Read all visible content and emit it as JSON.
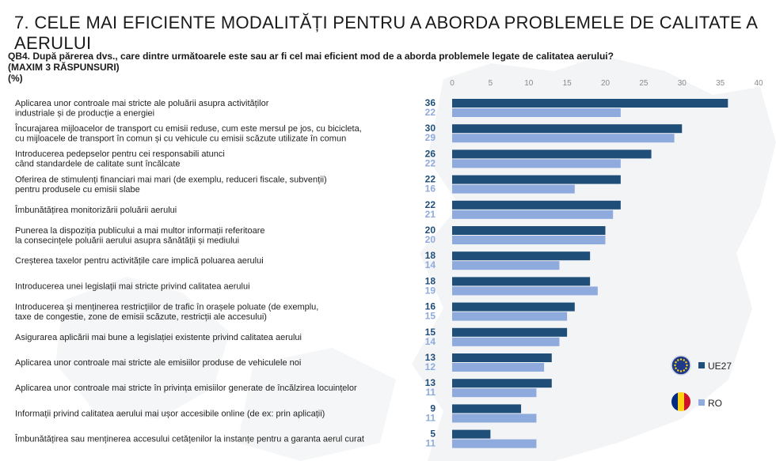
{
  "header": {
    "title": "7. CELE MAI EFICIENTE MODALITĂȚI PENTRU A ABORDA PROBLEMELE DE CALITATE A AERULUI"
  },
  "question": {
    "line1": "QB4. După părerea dvs., care dintre următoarele este sau ar fi cel mai eficient mod de a aborda problemele legate de calitatea aerului?",
    "line2": "(MAXIM 3 RĂSPUNSURI)",
    "line3": "(%)"
  },
  "colors": {
    "ue27": "#1f4e79",
    "ro": "#8faadc"
  },
  "legend": {
    "position": "right",
    "ue27_label": "UE27",
    "ro_label": "RO",
    "ue27_icon": "eu-flag-icon",
    "ro_icon": "romania-flag-icon"
  },
  "chart_data": {
    "type": "bar",
    "orientation": "horizontal",
    "xlim": [
      0,
      40
    ],
    "ticks": [
      0,
      5,
      10,
      15,
      20,
      25,
      30,
      35,
      40
    ],
    "grid": false,
    "categories": [
      [
        "Aplicarea unor controale mai stricte ale poluării asupra activităților",
        "industriale și de producție a energiei"
      ],
      [
        "Încurajarea mijloacelor de transport cu emisii reduse, cum este mersul pe jos, cu bicicleta,",
        "cu mijloacele de transport în comun și cu vehicule cu emisii scăzute utilizate în comun"
      ],
      [
        "Introducerea pedepselor pentru cei responsabili atunci",
        "când standardele de calitate sunt încălcate"
      ],
      [
        "Oferirea de stimulenți financiari mai mari (de exemplu, reduceri fiscale, subvenții)",
        "pentru produsele cu emisii slabe"
      ],
      [
        "Îmbunătățirea monitorizării poluării aerului"
      ],
      [
        "Punerea la dispoziția publicului a mai multor informații referitoare",
        "la consecințele poluării aerului asupra sănătății și mediului"
      ],
      [
        "Creșterea taxelor pentru activitățile care implică poluarea aerului"
      ],
      [
        "Introducerea unei legislații mai stricte privind calitatea aerului"
      ],
      [
        "Introducerea și menținerea restricțiilor de trafic în orașele poluate (de exemplu,",
        "taxe de congestie, zone de emisii scăzute, restricții ale accesului)"
      ],
      [
        "Asigurarea aplicării mai bune a legislației existente privind calitatea aerului"
      ],
      [
        "Aplicarea unor controale mai stricte ale emisiilor produse de vehiculele noi"
      ],
      [
        "Aplicarea unor controale mai stricte în privința emisiilor generate de încălzirea locuințelor"
      ],
      [
        "Informații privind calitatea aerului mai ușor accesibile online (de ex: prin aplicații)"
      ],
      [
        "Îmbunătățirea sau menținerea accesului cetățenilor la instanțe pentru a garanta aerul curat"
      ]
    ],
    "series": [
      {
        "name": "UE27",
        "values": [
          36,
          30,
          26,
          22,
          22,
          20,
          18,
          18,
          16,
          15,
          13,
          13,
          9,
          5
        ]
      },
      {
        "name": "RO",
        "values": [
          22,
          29,
          22,
          16,
          21,
          20,
          14,
          19,
          15,
          14,
          12,
          11,
          11,
          11
        ]
      }
    ]
  }
}
